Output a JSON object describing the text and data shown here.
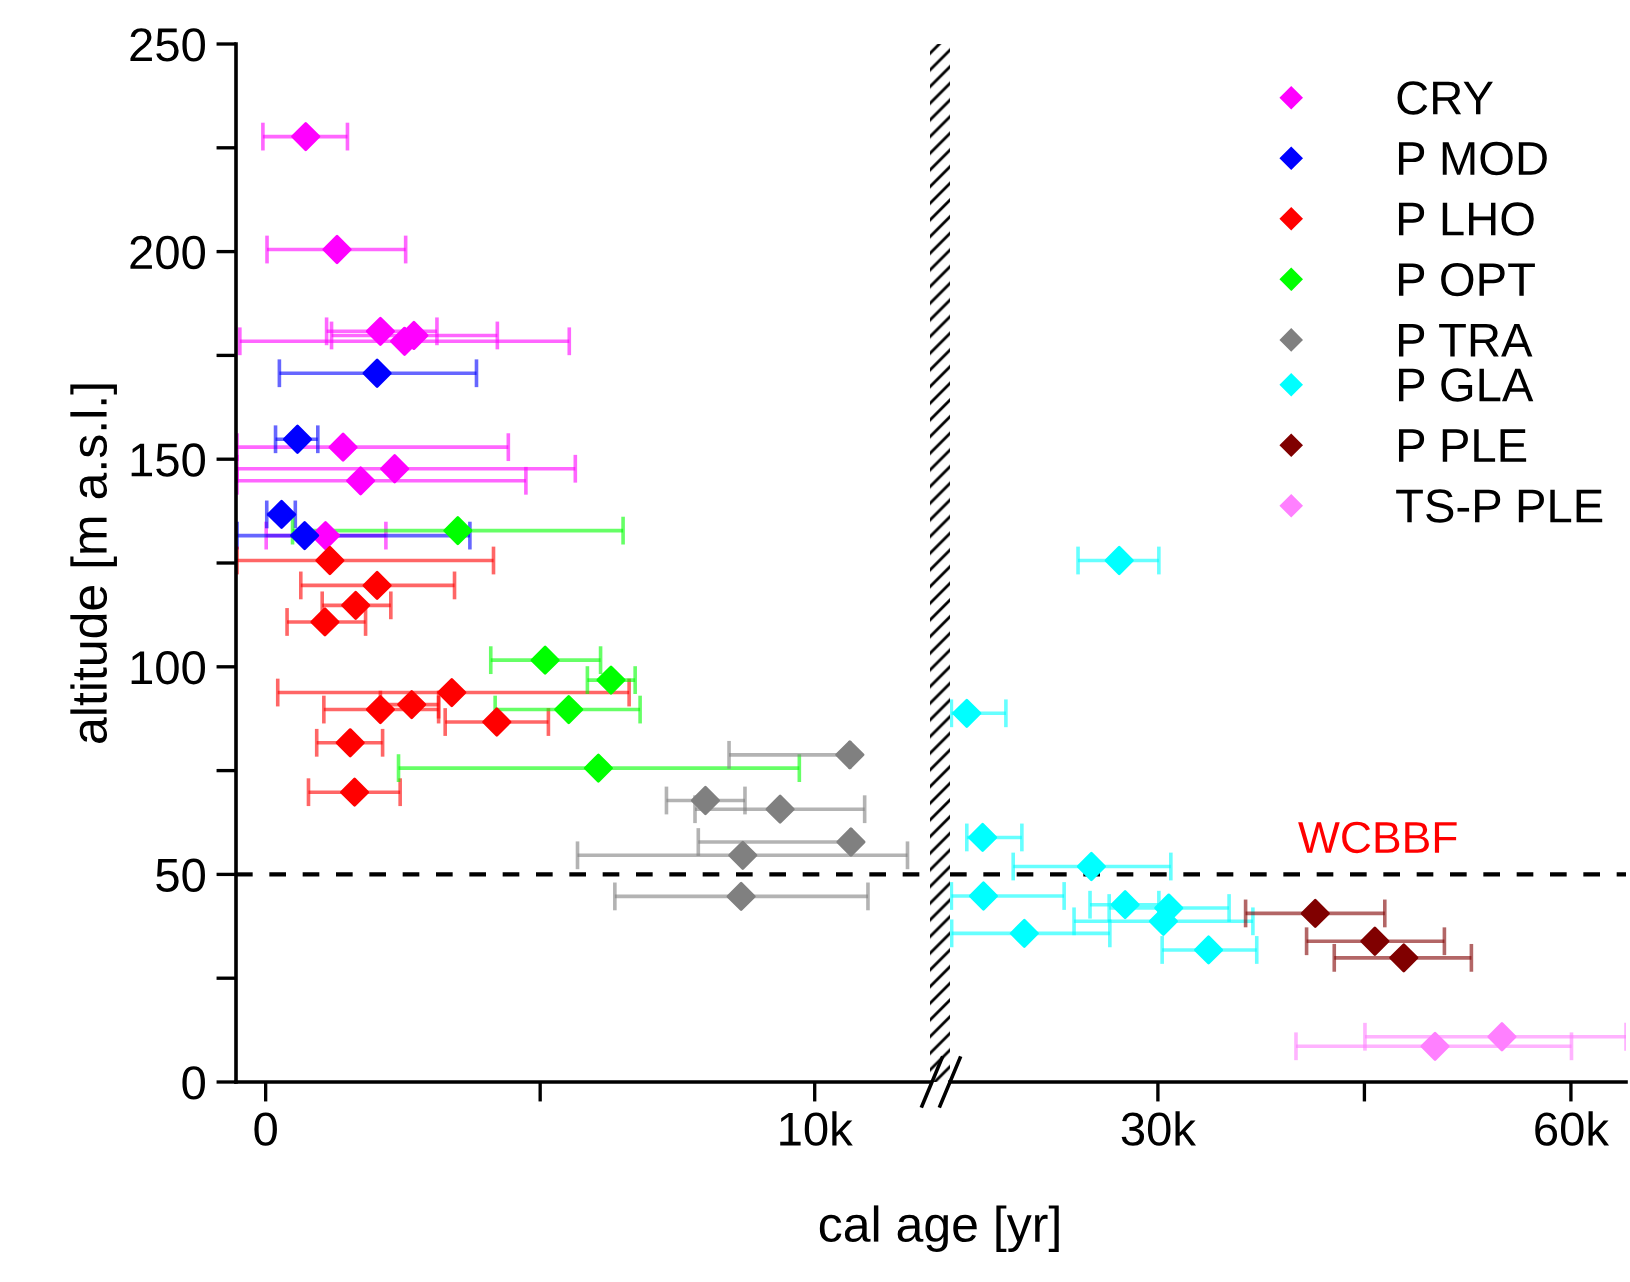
{
  "chart_data": [
    {
      "type": "scatter",
      "ylabel": "altitude [m a.s.l.]",
      "xlabel": "cal age [yr]",
      "marker": "diamond",
      "grid": false,
      "legend": "right",
      "xlim": [
        -540,
        12100
      ],
      "xticks": [
        0,
        {
          "value": 5000,
          "label": null
        },
        {
          "value": 10000,
          "label": "10k"
        }
      ],
      "ylim": [
        0,
        250
      ],
      "yticks": [
        0,
        {
          "value": 25,
          "label": null
        },
        50,
        {
          "value": 75,
          "label": null
        },
        100,
        {
          "value": 125,
          "label": null
        },
        150,
        {
          "value": 175,
          "label": null
        },
        200,
        {
          "value": 225,
          "label": null
        },
        250
      ],
      "ref_lines": [
        {
          "axis": "y",
          "value": 50,
          "line_style": "dashed",
          "color": "#000000"
        }
      ],
      "series": [
        {
          "name": "CRY",
          "color": "#ff00ff",
          "x": [
            730,
            1300,
            2090,
            2700,
            2530,
            1410,
            2350,
            1730,
            1090
          ],
          "values": [
            227.7,
            200.5,
            180.8,
            179.8,
            178.4,
            152.9,
            147.7,
            144.8,
            131.6
          ],
          "xerrors": [
            [
              -50,
              1490
            ],
            [
              25,
              2550
            ],
            [
              1110,
              3120
            ],
            [
              1200,
              4220
            ],
            [
              -470,
              5530
            ],
            [
              -520,
              4420
            ],
            [
              -520,
              5640
            ],
            [
              -520,
              4740
            ],
            [
              10,
              2190
            ]
          ]
        },
        {
          "name": "P MOD",
          "color": "#0000ff",
          "x": [
            2030,
            580,
            290,
            710
          ],
          "values": [
            170.7,
            154.8,
            136.7,
            131.6
          ],
          "xerrors": [
            [
              250,
              3840
            ],
            [
              180,
              950
            ],
            [
              20,
              540
            ],
            [
              -520,
              3720
            ]
          ]
        },
        {
          "name": "P LHO",
          "color": "#ff0000",
          "x": [
            1170,
            2030,
            1640,
            1080,
            3390,
            2090,
            2660,
            4210,
            1540,
            1620
          ],
          "values": [
            125.6,
            119.6,
            114.8,
            110.8,
            93.8,
            89.7,
            90.9,
            86.7,
            81.7,
            69.8
          ],
          "xerrors": [
            [
              -520,
              4150
            ],
            [
              640,
              3440
            ],
            [
              1030,
              2280
            ],
            [
              390,
              1820
            ],
            [
              220,
              6620
            ],
            [
              1060,
              3150
            ],
            [
              2090,
              3150
            ],
            [
              3270,
              5150
            ],
            [
              930,
              2130
            ],
            [
              780,
              2450
            ]
          ]
        },
        {
          "name": "P OPT",
          "color": "#00ff00",
          "x": [
            3500,
            5090,
            6290,
            5520,
            6060
          ],
          "values": [
            132.8,
            101.6,
            96.8,
            89.7,
            75.6
          ],
          "xerrors": [
            [
              490,
              6510
            ],
            [
              4100,
              6100
            ],
            [
              5860,
              6730
            ],
            [
              4180,
              6820
            ],
            [
              2420,
              9720
            ]
          ]
        },
        {
          "name": "P TRA",
          "color": "#808080",
          "x": [
            10640,
            8010,
            9370,
            10660,
            8690,
            8660
          ],
          "values": [
            78.8,
            67.8,
            65.7,
            57.8,
            54.6,
            44.7
          ],
          "xerrors": [
            [
              8440,
              10640
            ],
            [
              7300,
              8730
            ],
            [
              7820,
              10910
            ],
            [
              7880,
              10660
            ],
            [
              5680,
              11690
            ],
            [
              6360,
              10970
            ]
          ]
        }
      ]
    },
    {
      "type": "scatter",
      "marker": "diamond",
      "grid": false,
      "legend": "top right",
      "tick_labels": "x",
      "xlim": [
        14900,
        64000
      ],
      "xticks": [
        {
          "value": 30000,
          "label": "30k"
        },
        {
          "value": 45000,
          "label": null
        },
        {
          "value": 60000,
          "label": "60k"
        }
      ],
      "ylim": [
        0,
        250
      ],
      "ref_lines": [
        {
          "axis": "y",
          "value": 50,
          "label": "WCBBF",
          "line_style": "dashed",
          "color": "#000000"
        }
      ],
      "series": [
        {
          "name": "P GLA",
          "color": "#00ffff",
          "x": [
            27190,
            16120,
            17270,
            25170,
            17330,
            27620,
            30790,
            30400,
            20300,
            33680
          ],
          "values": [
            125.6,
            88.8,
            58.9,
            51.9,
            44.8,
            42.7,
            41.9,
            38.7,
            35.8,
            31.8
          ],
          "xerrors": [
            [
              24200,
              30070
            ],
            [
              15000,
              18960
            ],
            [
              16120,
              20120
            ],
            [
              19490,
              30940
            ],
            [
              15000,
              23190
            ],
            [
              25070,
              30070
            ],
            [
              26460,
              35170
            ],
            [
              23910,
              36900
            ],
            [
              15020,
              26510
            ],
            [
              30310,
              37180
            ]
          ]
        },
        {
          "name": "P PLE",
          "color": "#800000",
          "x": [
            41430,
            45760,
            47860
          ],
          "values": [
            40.6,
            33.9,
            29.9
          ],
          "xerrors": [
            [
              36370,
              46480
            ],
            [
              40800,
              50810
            ],
            [
              42810,
              52770
            ]
          ]
        },
        {
          "name": "TS-P PLE",
          "color": "#ff80ff",
          "x": [
            54990,
            50130
          ],
          "values": [
            10.9,
            8.6
          ],
          "xerrors": [
            [
              45040,
              64000
            ],
            [
              40030,
              60040
            ]
          ]
        }
      ]
    }
  ]
}
